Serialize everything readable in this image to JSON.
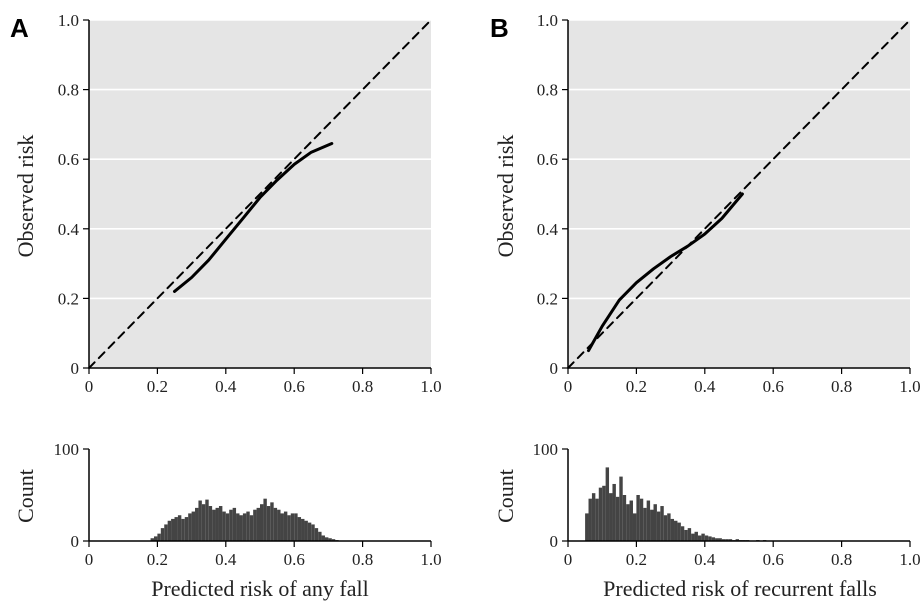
{
  "chart_data": [
    {
      "panel": "A",
      "type": "line",
      "xlabel": "",
      "ylabel": "Observed risk",
      "xlim": [
        0,
        1
      ],
      "ylim": [
        0,
        1
      ],
      "x_ticks": [
        "0",
        "0.2",
        "0.4",
        "0.6",
        "0.8",
        "1.0"
      ],
      "y_ticks": [
        "0",
        "0.2",
        "0.4",
        "0.6",
        "0.8",
        "1.0"
      ],
      "grid": true,
      "background": "#e5e5e5",
      "series": [
        {
          "style": "dashed",
          "x": [
            0,
            1
          ],
          "y": [
            0,
            1
          ]
        },
        {
          "style": "solid",
          "x": [
            0.25,
            0.3,
            0.35,
            0.4,
            0.45,
            0.5,
            0.55,
            0.6,
            0.65,
            0.71
          ],
          "y": [
            0.22,
            0.26,
            0.31,
            0.37,
            0.43,
            0.49,
            0.54,
            0.585,
            0.62,
            0.645
          ]
        }
      ]
    },
    {
      "panel": "A",
      "type": "bar",
      "xlabel": "Predicted risk of any fall",
      "ylabel": "Count",
      "xlim": [
        0,
        1
      ],
      "ylim": [
        0,
        100
      ],
      "x_ticks": [
        "0",
        "0.2",
        "0.4",
        "0.6",
        "0.8",
        "1.0"
      ],
      "y_ticks": [
        "0",
        "100"
      ],
      "bin_width": 0.01,
      "bin_start": 0.18,
      "values": [
        3,
        5,
        8,
        14,
        18,
        22,
        24,
        26,
        28,
        24,
        26,
        30,
        32,
        36,
        44,
        40,
        45,
        38,
        34,
        36,
        38,
        32,
        30,
        34,
        36,
        30,
        28,
        30,
        32,
        28,
        34,
        36,
        40,
        46,
        38,
        42,
        36,
        34,
        30,
        32,
        28,
        30,
        30,
        26,
        24,
        22,
        20,
        18,
        14,
        10,
        6,
        4,
        3,
        2,
        1
      ]
    },
    {
      "panel": "B",
      "type": "line",
      "xlabel": "",
      "ylabel": "Observed risk",
      "xlim": [
        0,
        1
      ],
      "ylim": [
        0,
        1
      ],
      "x_ticks": [
        "0",
        "0.2",
        "0.4",
        "0.6",
        "0.8",
        "1.0"
      ],
      "y_ticks": [
        "0",
        "0.2",
        "0.4",
        "0.6",
        "0.8",
        "1.0"
      ],
      "grid": true,
      "background": "#e5e5e5",
      "series": [
        {
          "style": "dashed",
          "x": [
            0,
            1
          ],
          "y": [
            0,
            1
          ]
        },
        {
          "style": "solid",
          "x": [
            0.06,
            0.1,
            0.15,
            0.2,
            0.25,
            0.3,
            0.35,
            0.4,
            0.45,
            0.51
          ],
          "y": [
            0.05,
            0.12,
            0.195,
            0.245,
            0.285,
            0.32,
            0.35,
            0.385,
            0.43,
            0.5
          ]
        }
      ]
    },
    {
      "panel": "B",
      "type": "bar",
      "xlabel": "Predicted risk of recurrent falls",
      "ylabel": "Count",
      "xlim": [
        0,
        1
      ],
      "ylim": [
        0,
        100
      ],
      "x_ticks": [
        "0",
        "0.2",
        "0.4",
        "0.6",
        "0.8",
        "1.0"
      ],
      "y_ticks": [
        "0",
        "100"
      ],
      "bin_width": 0.01,
      "bin_start": 0.05,
      "values": [
        30,
        46,
        52,
        46,
        58,
        60,
        80,
        52,
        62,
        48,
        70,
        50,
        40,
        44,
        30,
        50,
        46,
        36,
        44,
        34,
        40,
        32,
        38,
        28,
        30,
        24,
        22,
        20,
        16,
        12,
        14,
        8,
        10,
        6,
        8,
        6,
        5,
        4,
        3,
        3,
        2,
        2,
        2,
        1,
        2,
        1,
        1,
        1,
        0,
        0,
        1,
        0,
        1
      ]
    }
  ],
  "panels": [
    {
      "letter": "A",
      "ylabel": "Observed risk",
      "x_ticks": [
        "0",
        "0.2",
        "0.4",
        "0.6",
        "0.8",
        "1.0"
      ],
      "y_ticks": [
        "0",
        "0.2",
        "0.4",
        "0.6",
        "0.8",
        "1.0"
      ],
      "hist_ylabel": "Count",
      "hist_y_ticks": [
        "0",
        "100"
      ],
      "xlabel": "Predicted risk of any fall"
    },
    {
      "letter": "B",
      "ylabel": "Observed risk",
      "x_ticks": [
        "0",
        "0.2",
        "0.4",
        "0.6",
        "0.8",
        "1.0"
      ],
      "y_ticks": [
        "0",
        "0.2",
        "0.4",
        "0.6",
        "0.8",
        "1.0"
      ],
      "hist_ylabel": "Count",
      "hist_y_ticks": [
        "0",
        "100"
      ],
      "xlabel": "Predicted risk of recurrent falls"
    }
  ],
  "colors": {
    "panel_background": "#e5e5e5",
    "gridline": "#ffffff",
    "calibration_line": "#000000",
    "reference_line": "#000000",
    "histogram_bar": "#444444",
    "axis": "#000000"
  }
}
